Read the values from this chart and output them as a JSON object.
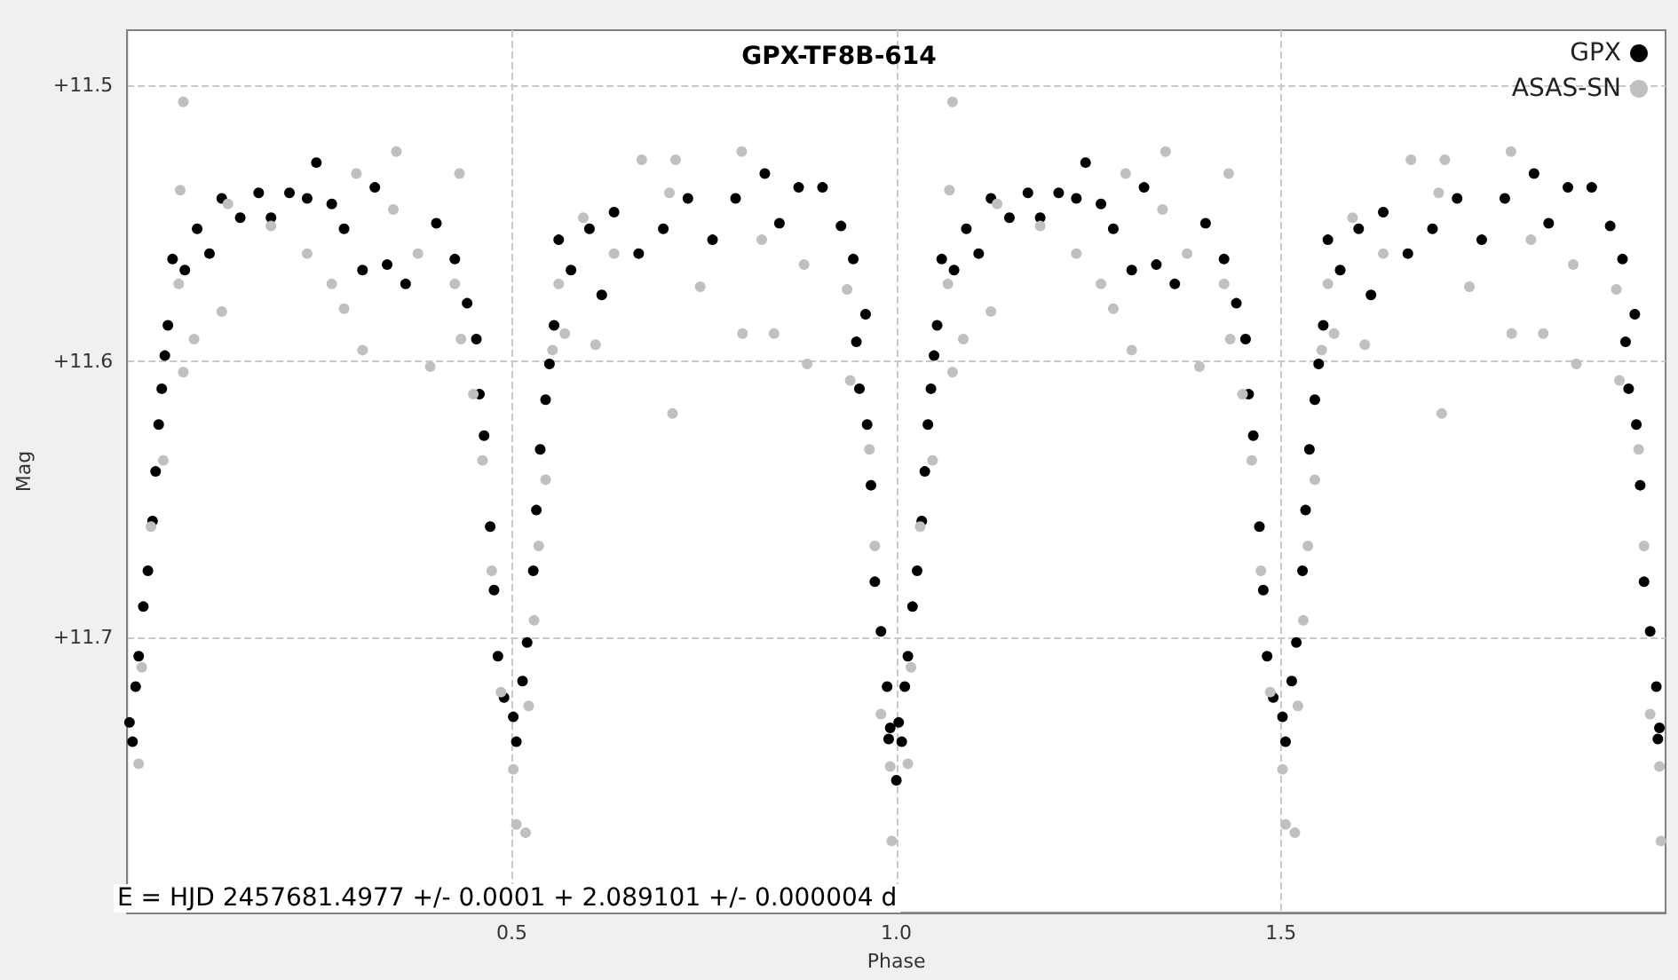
{
  "chart_data": {
    "type": "scatter",
    "title": "GPX-TF8B-614",
    "xlabel": "Phase",
    "ylabel": "Mag",
    "annotations": [
      "E = HJD 2457681.4977 +/- 0.0001 + 2.089101 +/- 0.000004 d"
    ],
    "xlim": [
      0,
      2
    ],
    "xticks": [
      0.5,
      {
        "value": 1,
        "label": "1.0"
      },
      1.5
    ],
    "ylim": [
      11.8,
      11.48
    ],
    "yticks": [
      {
        "value": 11.5,
        "label": "+11.5"
      },
      {
        "value": 11.6,
        "label": "+11.6"
      },
      {
        "value": 11.7,
        "label": "+11.7"
      }
    ],
    "grid": true,
    "legend": "top right",
    "marker": "circle",
    "series": [
      {
        "name": "GPX",
        "color": "#000000",
        "x": [
          0.003,
          0.007,
          0.011,
          0.015,
          0.021,
          0.027,
          0.033,
          0.037,
          0.041,
          0.045,
          0.049,
          0.053,
          0.059,
          0.075,
          0.091,
          0.107,
          0.123,
          0.147,
          0.171,
          0.187,
          0.211,
          0.234,
          0.246,
          0.266,
          0.282,
          0.306,
          0.322,
          0.338,
          0.362,
          0.402,
          0.426,
          0.442,
          0.454,
          0.458,
          0.464,
          0.472,
          0.477,
          0.482,
          0.49,
          0.502,
          0.506,
          0.514,
          0.52,
          0.528,
          0.532,
          0.537,
          0.544,
          0.549,
          0.555,
          0.561,
          0.577,
          0.601,
          0.617,
          0.633,
          0.665,
          0.697,
          0.729,
          0.761,
          0.791,
          0.829,
          0.848,
          0.873,
          0.904,
          0.928,
          0.944,
          0.948,
          0.952,
          0.96,
          0.962,
          0.967,
          0.972,
          0.98,
          0.988,
          0.99,
          0.992,
          1.0,
          1.003,
          1.007,
          1.011,
          1.015,
          1.021,
          1.027,
          1.033,
          1.037,
          1.041,
          1.045,
          1.049,
          1.053,
          1.059,
          1.075,
          1.091,
          1.107,
          1.123,
          1.147,
          1.171,
          1.187,
          1.211,
          1.234,
          1.246,
          1.266,
          1.282,
          1.306,
          1.322,
          1.338,
          1.362,
          1.402,
          1.426,
          1.442,
          1.454,
          1.458,
          1.464,
          1.472,
          1.477,
          1.482,
          1.49,
          1.502,
          1.506,
          1.514,
          1.52,
          1.528,
          1.532,
          1.537,
          1.544,
          1.549,
          1.555,
          1.561,
          1.577,
          1.601,
          1.617,
          1.633,
          1.665,
          1.697,
          1.729,
          1.761,
          1.791,
          1.829,
          1.848,
          1.873,
          1.904,
          1.928,
          1.944,
          1.948,
          1.952,
          1.96,
          1.962,
          1.967,
          1.972,
          1.98,
          1.988,
          1.99,
          1.992
        ],
        "values": [
          11.731,
          11.738,
          11.718,
          11.707,
          11.689,
          11.676,
          11.658,
          11.64,
          11.623,
          11.61,
          11.598,
          11.587,
          11.563,
          11.567,
          11.552,
          11.561,
          11.541,
          11.548,
          11.539,
          11.548,
          11.539,
          11.541,
          11.528,
          11.543,
          11.552,
          11.567,
          11.537,
          11.565,
          11.572,
          11.55,
          11.563,
          11.579,
          11.592,
          11.612,
          11.627,
          11.66,
          11.683,
          11.707,
          11.722,
          11.729,
          11.738,
          11.716,
          11.702,
          11.676,
          11.654,
          11.632,
          11.614,
          11.601,
          11.587,
          11.556,
          11.567,
          11.552,
          11.576,
          11.546,
          11.561,
          11.552,
          11.541,
          11.556,
          11.541,
          11.532,
          11.55,
          11.537,
          11.537,
          11.551,
          11.563,
          11.593,
          11.61,
          11.583,
          11.623,
          11.645,
          11.68,
          11.698,
          11.718,
          11.737,
          11.733,
          11.752,
          11.731,
          11.738,
          11.718,
          11.707,
          11.689,
          11.676,
          11.658,
          11.64,
          11.623,
          11.61,
          11.598,
          11.587,
          11.563,
          11.567,
          11.552,
          11.561,
          11.541,
          11.548,
          11.539,
          11.548,
          11.539,
          11.541,
          11.528,
          11.543,
          11.552,
          11.567,
          11.537,
          11.565,
          11.572,
          11.55,
          11.563,
          11.579,
          11.592,
          11.612,
          11.627,
          11.66,
          11.683,
          11.707,
          11.722,
          11.729,
          11.738,
          11.716,
          11.702,
          11.676,
          11.654,
          11.632,
          11.614,
          11.601,
          11.587,
          11.556,
          11.567,
          11.552,
          11.576,
          11.546,
          11.561,
          11.552,
          11.541,
          11.556,
          11.541,
          11.532,
          11.55,
          11.537,
          11.537,
          11.551,
          11.563,
          11.593,
          11.61,
          11.583,
          11.623,
          11.645,
          11.68,
          11.698,
          11.718,
          11.737,
          11.733
        ]
      },
      {
        "name": "ASAS-SN",
        "color": "#c0c0c0",
        "x": [
          0.015,
          0.019,
          0.031,
          0.047,
          0.067,
          0.069,
          0.073,
          0.073,
          0.087,
          0.123,
          0.131,
          0.187,
          0.234,
          0.266,
          0.282,
          0.298,
          0.306,
          0.346,
          0.35,
          0.378,
          0.394,
          0.426,
          0.432,
          0.434,
          0.45,
          0.462,
          0.474,
          0.486,
          0.502,
          0.506,
          0.518,
          0.522,
          0.529,
          0.535,
          0.544,
          0.553,
          0.561,
          0.569,
          0.593,
          0.609,
          0.633,
          0.669,
          0.705,
          0.709,
          0.713,
          0.745,
          0.799,
          0.8,
          0.825,
          0.841,
          0.88,
          0.884,
          0.936,
          0.94,
          0.965,
          0.972,
          0.98,
          0.992,
          0.994,
          1.015,
          1.019,
          1.031,
          1.047,
          1.067,
          1.069,
          1.073,
          1.073,
          1.087,
          1.123,
          1.131,
          1.187,
          1.234,
          1.266,
          1.282,
          1.298,
          1.306,
          1.346,
          1.35,
          1.378,
          1.394,
          1.426,
          1.432,
          1.434,
          1.45,
          1.462,
          1.474,
          1.486,
          1.502,
          1.506,
          1.518,
          1.522,
          1.529,
          1.535,
          1.544,
          1.553,
          1.561,
          1.569,
          1.593,
          1.609,
          1.633,
          1.669,
          1.705,
          1.709,
          1.713,
          1.745,
          1.799,
          1.8,
          1.825,
          1.841,
          1.88,
          1.884,
          1.936,
          1.94,
          1.965,
          1.972,
          1.98,
          1.992,
          1.994
        ],
        "values": [
          11.746,
          11.711,
          11.66,
          11.636,
          11.572,
          11.538,
          11.506,
          11.604,
          11.592,
          11.582,
          11.543,
          11.551,
          11.561,
          11.572,
          11.581,
          11.532,
          11.596,
          11.545,
          11.524,
          11.561,
          11.602,
          11.572,
          11.532,
          11.592,
          11.612,
          11.636,
          11.676,
          11.72,
          11.748,
          11.768,
          11.771,
          11.725,
          11.694,
          11.667,
          11.643,
          11.596,
          11.572,
          11.59,
          11.548,
          11.594,
          11.561,
          11.527,
          11.539,
          11.619,
          11.527,
          11.573,
          11.524,
          11.59,
          11.556,
          11.59,
          11.565,
          11.601,
          11.574,
          11.607,
          11.632,
          11.667,
          11.728,
          11.747,
          11.774,
          11.746,
          11.711,
          11.66,
          11.636,
          11.572,
          11.538,
          11.506,
          11.604,
          11.592,
          11.582,
          11.543,
          11.551,
          11.561,
          11.572,
          11.581,
          11.532,
          11.596,
          11.545,
          11.524,
          11.561,
          11.602,
          11.572,
          11.532,
          11.592,
          11.612,
          11.636,
          11.676,
          11.72,
          11.748,
          11.768,
          11.771,
          11.725,
          11.694,
          11.667,
          11.643,
          11.596,
          11.572,
          11.59,
          11.548,
          11.594,
          11.561,
          11.527,
          11.539,
          11.619,
          11.527,
          11.573,
          11.524,
          11.59,
          11.556,
          11.59,
          11.565,
          11.601,
          11.574,
          11.607,
          11.632,
          11.667,
          11.728,
          11.747,
          11.774
        ]
      }
    ]
  }
}
